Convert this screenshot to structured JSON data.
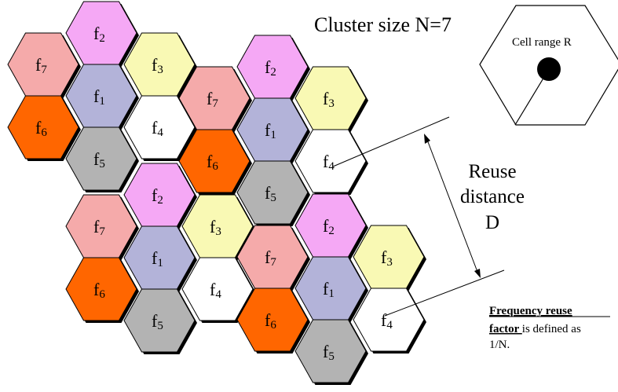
{
  "title": "Cluster size N=7",
  "cell_range_label": "Cell range R",
  "reuse_label": [
    "Reuse",
    "distance",
    "D"
  ],
  "note": {
    "bold_part1": "Frequency reuse",
    "bold_part2": "factor ",
    "rest": "is defined as",
    "last": "1/N."
  },
  "freq_prefix": "f",
  "colors": {
    "1": "#b3b3d9",
    "2": "#f5a8f5",
    "3": "#f9f9b4",
    "4": "#ffffff",
    "5": "#b3b3b3",
    "6": "#ff6600",
    "7": "#f5aaaa"
  },
  "clusters": [
    {
      "name": "top-left",
      "cells": [
        {
          "f": 1
        },
        {
          "f": 2
        },
        {
          "f": 3
        },
        {
          "f": 4
        },
        {
          "f": 5
        },
        {
          "f": 6
        },
        {
          "f": 7
        }
      ]
    },
    {
      "name": "top-right",
      "cells": [
        {
          "f": 1
        },
        {
          "f": 2
        },
        {
          "f": 3
        },
        {
          "f": 4
        },
        {
          "f": 5
        },
        {
          "f": 6
        },
        {
          "f": 7
        }
      ]
    },
    {
      "name": "bottom-left",
      "cells": [
        {
          "f": 1
        },
        {
          "f": 2
        },
        {
          "f": 3
        },
        {
          "f": 4
        },
        {
          "f": 5
        },
        {
          "f": 6
        },
        {
          "f": 7
        }
      ]
    },
    {
      "name": "bottom-right",
      "cells": [
        {
          "f": 1
        },
        {
          "f": 2
        },
        {
          "f": 3
        },
        {
          "f": 4
        },
        {
          "f": 5
        },
        {
          "f": 6
        },
        {
          "f": 7
        }
      ]
    }
  ]
}
